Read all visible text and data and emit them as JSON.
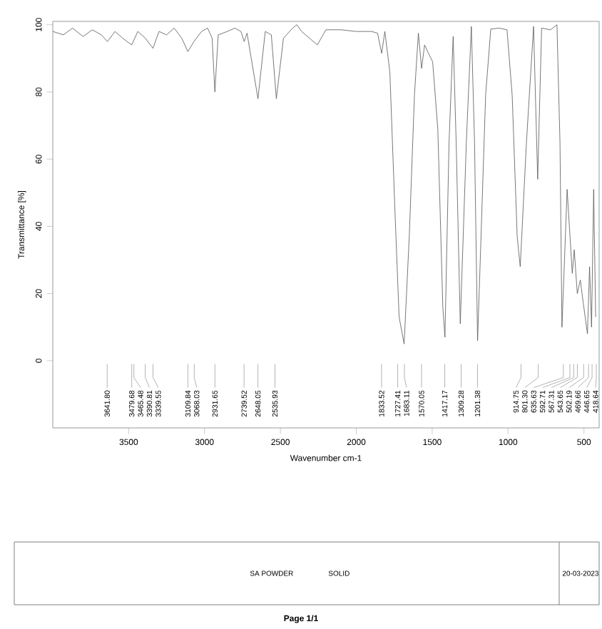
{
  "chart_data": {
    "type": "line",
    "xlabel": "Wavenumber cm-1",
    "ylabel": "Transmittance [%]",
    "xlim": [
      4000,
      400
    ],
    "ylim": [
      -20,
      101
    ],
    "xticks": [
      3500,
      3000,
      2500,
      2000,
      1500,
      1000,
      500
    ],
    "yticks": [
      0,
      20,
      40,
      60,
      80,
      100
    ],
    "grid": false,
    "marker": "none",
    "line_style": "solid",
    "series": [
      {
        "color": "#555555",
        "x": [
          4000,
          3930,
          3870,
          3800,
          3740,
          3680,
          3640,
          3590,
          3540,
          3480,
          3440,
          3390,
          3340,
          3300,
          3250,
          3200,
          3150,
          3110,
          3070,
          3020,
          2980,
          2950,
          2932,
          2910,
          2850,
          2800,
          2760,
          2739,
          2720,
          2648,
          2600,
          2560,
          2527,
          2480,
          2420,
          2392,
          2360,
          2257,
          2200,
          2100,
          2000,
          1899,
          1860,
          1833,
          1812,
          1779,
          1745,
          1718,
          1685,
          1651,
          1617,
          1591,
          1570,
          1550,
          1530,
          1497,
          1463,
          1430,
          1416,
          1389,
          1362,
          1342,
          1315,
          1275,
          1242,
          1221,
          1201,
          1181,
          1148,
          1114,
          1060,
          1007,
          973,
          940,
          920,
          879,
          832,
          805,
          779,
          720,
          678,
          658,
          645,
          611,
          577,
          564,
          544,
          524,
          504,
          477,
          463,
          450,
          436,
          423
        ],
        "values": [
          98,
          97,
          99,
          96.5,
          98.5,
          97,
          95,
          98,
          96,
          94,
          98,
          96,
          93,
          98,
          97,
          99,
          96,
          92,
          95,
          98,
          99,
          96,
          80,
          97,
          98,
          99,
          98,
          95,
          97.5,
          78,
          98,
          97,
          78,
          96,
          99,
          100,
          98,
          94,
          98.5,
          98.5,
          98,
          98,
          97.5,
          91.5,
          98,
          86,
          44,
          13,
          5,
          37,
          79,
          97.5,
          87,
          94,
          92,
          89,
          69,
          16,
          7,
          65,
          96.5,
          65,
          11,
          65,
          99.5,
          65,
          6,
          33,
          79,
          98.7,
          99,
          98.5,
          79,
          37,
          28,
          65,
          99.5,
          54,
          99,
          98.5,
          100,
          65,
          10,
          51,
          26,
          33,
          20,
          24,
          17,
          8,
          28,
          10,
          51,
          13
        ]
      }
    ],
    "annotations": [
      {
        "text": "3641.80",
        "x": 3641.8
      },
      {
        "text": "3479.68",
        "x": 3479.68
      },
      {
        "text": "3465.48",
        "x": 3465.48
      },
      {
        "text": "3390.81",
        "x": 3390.81
      },
      {
        "text": "3339.55",
        "x": 3339.55
      },
      {
        "text": "3109.84",
        "x": 3109.84
      },
      {
        "text": "3068.03",
        "x": 3068.03
      },
      {
        "text": "2931.65",
        "x": 2931.65
      },
      {
        "text": "2739.52",
        "x": 2739.52
      },
      {
        "text": "2648.05",
        "x": 2648.05
      },
      {
        "text": "2535.93",
        "x": 2535.93
      },
      {
        "text": "1833.52",
        "x": 1833.52
      },
      {
        "text": "1727.41",
        "x": 1727.41
      },
      {
        "text": "1683.11",
        "x": 1683.11
      },
      {
        "text": "1570.05",
        "x": 1570.05
      },
      {
        "text": "1417.17",
        "x": 1417.17
      },
      {
        "text": "1309.28",
        "x": 1309.28
      },
      {
        "text": "1201.38",
        "x": 1201.38
      },
      {
        "text": "914.75",
        "x": 914.75
      },
      {
        "text": "801.30",
        "x": 801.3
      },
      {
        "text": "635.63",
        "x": 635.63
      },
      {
        "text": "592.71",
        "x": 592.71
      },
      {
        "text": "567.31",
        "x": 567.31
      },
      {
        "text": "543.65",
        "x": 543.65
      },
      {
        "text": "502.19",
        "x": 502.19
      },
      {
        "text": "469.66",
        "x": 469.66
      },
      {
        "text": "446.65",
        "x": 446.65
      },
      {
        "text": "418.64",
        "x": 418.64
      },
      "SA POWDER",
      "SOLID",
      "20-03-2023",
      "Page 1/1"
    ]
  }
}
